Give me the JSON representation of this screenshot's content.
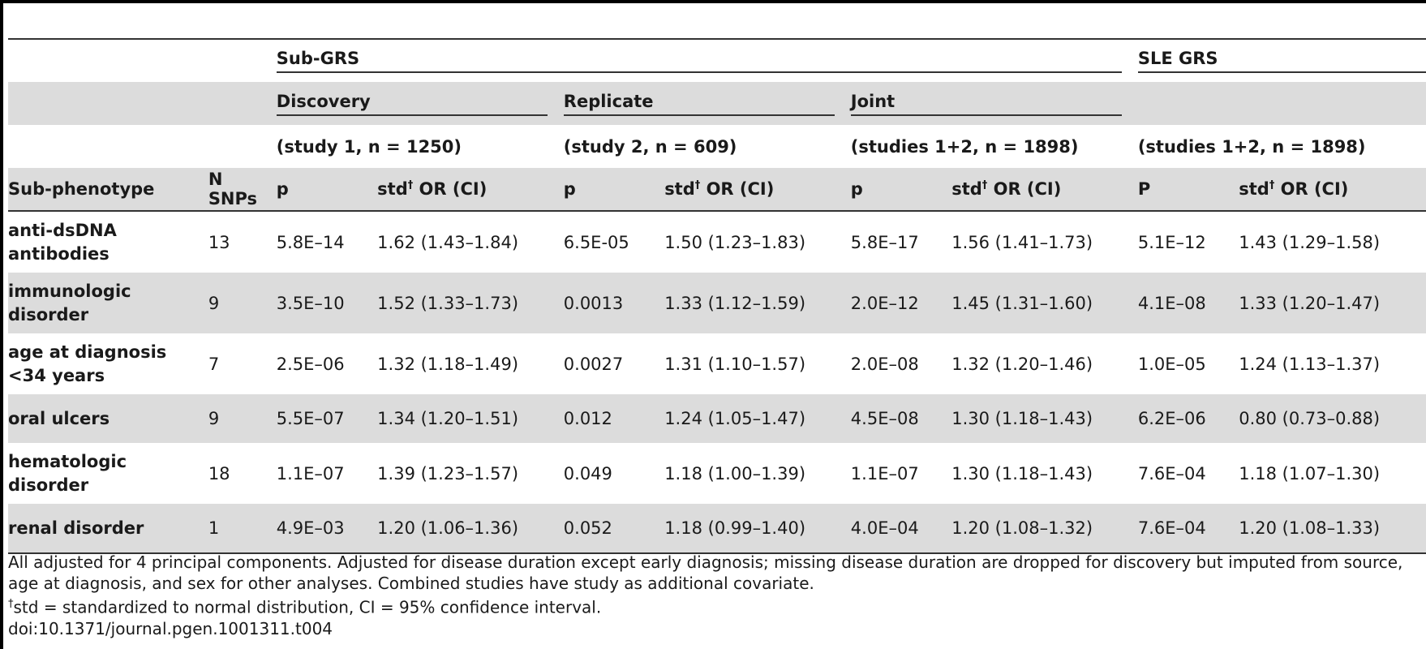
{
  "table": {
    "groups": {
      "sub_grs": "Sub-GRS",
      "sle_grs": "SLE GRS"
    },
    "studies": {
      "discovery": "Discovery",
      "replicate": "Replicate",
      "joint": "Joint"
    },
    "cohorts": {
      "discovery": "(study 1, n = 1250)",
      "replicate": "(study 2, n = 609)",
      "joint": "(studies 1+2, n = 1898)",
      "sle": "(studies 1+2, n = 1898)"
    },
    "columns": {
      "subphenotype": "Sub-phenotype",
      "nsnps": "N SNPs",
      "p": "p",
      "p_upper": "P",
      "std": "std",
      "dagger": "†",
      "or_ci": " OR (CI)"
    },
    "rows": [
      {
        "name": "anti-dsDNA antibodies",
        "nsnps": "13",
        "d_p": "5.8E–14",
        "d_or": "1.62 (1.43–1.84)",
        "r_p": "6.5E-05",
        "r_or": "1.50 (1.23–1.83)",
        "j_p": "5.8E–17",
        "j_or": "1.56 (1.41–1.73)",
        "s_p": "5.1E–12",
        "s_or": "1.43 (1.29–1.58)"
      },
      {
        "name": "immunologic disorder",
        "nsnps": "9",
        "d_p": "3.5E–10",
        "d_or": "1.52 (1.33–1.73)",
        "r_p": "0.0013",
        "r_or": "1.33 (1.12–1.59)",
        "j_p": "2.0E–12",
        "j_or": "1.45 (1.31–1.60)",
        "s_p": "4.1E–08",
        "s_or": "1.33 (1.20–1.47)"
      },
      {
        "name": "age at diagnosis <34 years",
        "nsnps": "7",
        "d_p": "2.5E–06",
        "d_or": "1.32 (1.18–1.49)",
        "r_p": "0.0027",
        "r_or": "1.31 (1.10–1.57)",
        "j_p": "2.0E–08",
        "j_or": "1.32 (1.20–1.46)",
        "s_p": "1.0E–05",
        "s_or": "1.24 (1.13–1.37)"
      },
      {
        "name": "oral ulcers",
        "nsnps": "9",
        "d_p": "5.5E–07",
        "d_or": "1.34 (1.20–1.51)",
        "r_p": "0.012",
        "r_or": "1.24 (1.05–1.47)",
        "j_p": "4.5E–08",
        "j_or": "1.30 (1.18–1.43)",
        "s_p": "6.2E–06",
        "s_or": "0.80 (0.73–0.88)"
      },
      {
        "name": "hematologic disorder",
        "nsnps": "18",
        "d_p": "1.1E–07",
        "d_or": "1.39 (1.23–1.57)",
        "r_p": "0.049",
        "r_or": "1.18 (1.00–1.39)",
        "j_p": "1.1E–07",
        "j_or": "1.30 (1.18–1.43)",
        "s_p": "7.6E–04",
        "s_or": "1.18 (1.07–1.30)"
      },
      {
        "name": "renal disorder",
        "nsnps": "1",
        "d_p": "4.9E–03",
        "d_or": "1.20 (1.06–1.36)",
        "r_p": "0.052",
        "r_or": "1.18 (0.99–1.40)",
        "j_p": "4.0E–04",
        "j_or": "1.20 (1.08–1.32)",
        "s_p": "7.6E–04",
        "s_or": "1.20 (1.08–1.33)"
      }
    ]
  },
  "footnotes": {
    "note1": "All adjusted for 4 principal components. Adjusted for disease duration except early diagnosis; missing disease duration are dropped for discovery but imputed from source, age at diagnosis, and sex for other analyses. Combined studies have study as additional covariate.",
    "dagger": "†",
    "note2": "std = standardized to normal distribution, CI = 95% confidence interval.",
    "doi": "doi:10.1371/journal.pgen.1001311.t004"
  }
}
